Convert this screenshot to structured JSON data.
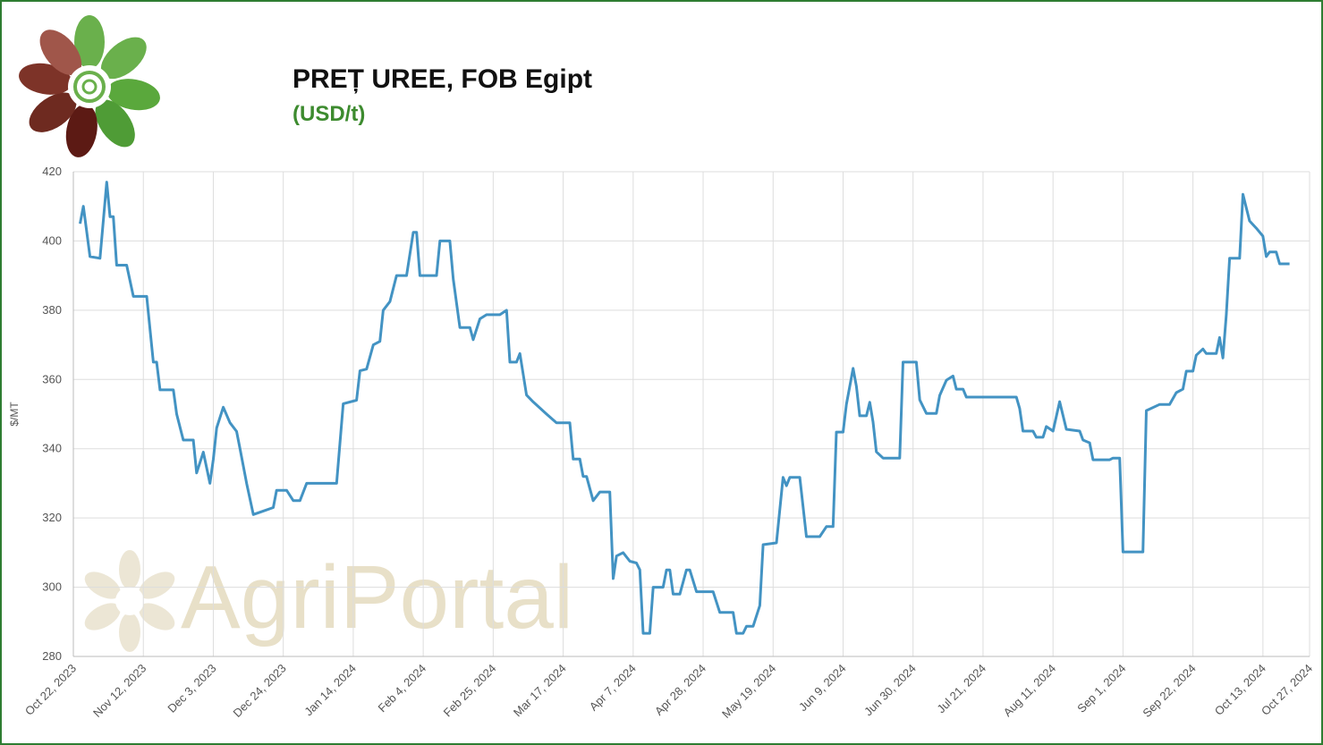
{
  "chart_data": {
    "type": "line",
    "title": "PREȚ UREE, FOB Egipt",
    "subtitle": "(USD/t)",
    "watermark": "AgriPortal",
    "y_label": "$/MT",
    "grid": true,
    "xlim": [
      "2023-10-22",
      "2024-10-27"
    ],
    "xticks": [
      {
        "value": "2023-10-22",
        "label": "Oct 22, 2023"
      },
      {
        "value": "2023-11-12",
        "label": "Nov 12, 2023"
      },
      {
        "value": "2023-12-03",
        "label": "Dec 3, 2023"
      },
      {
        "value": "2023-12-24",
        "label": "Dec 24, 2023"
      },
      {
        "value": "2024-01-14",
        "label": "Jan 14, 2024"
      },
      {
        "value": "2024-02-04",
        "label": "Feb 4, 2024"
      },
      {
        "value": "2024-02-25",
        "label": "Feb 25, 2024"
      },
      {
        "value": "2024-03-17",
        "label": "Mar 17, 2024"
      },
      {
        "value": "2024-04-07",
        "label": "Apr 7, 2024"
      },
      {
        "value": "2024-04-28",
        "label": "Apr 28, 2024"
      },
      {
        "value": "2024-05-19",
        "label": "May 19, 2024"
      },
      {
        "value": "2024-06-09",
        "label": "Jun 9, 2024"
      },
      {
        "value": "2024-06-30",
        "label": "Jun 30, 2024"
      },
      {
        "value": "2024-07-21",
        "label": "Jul 21, 2024"
      },
      {
        "value": "2024-08-11",
        "label": "Aug 11, 2024"
      },
      {
        "value": "2024-09-01",
        "label": "Sep 1, 2024"
      },
      {
        "value": "2024-09-22",
        "label": "Sep 22, 2024"
      },
      {
        "value": "2024-10-13",
        "label": "Oct 13, 2024"
      },
      {
        "value": "2024-10-27",
        "label": "Oct 27, 2024"
      }
    ],
    "ylim": [
      280,
      420
    ],
    "yticks": [
      280,
      300,
      320,
      340,
      360,
      380,
      400,
      420
    ],
    "x": [
      "2023-10-24",
      "2023-10-25",
      "2023-10-27",
      "2023-10-30",
      "2023-11-01",
      "2023-11-02",
      "2023-11-03",
      "2023-11-04",
      "2023-11-07",
      "2023-11-09",
      "2023-11-13",
      "2023-11-15",
      "2023-11-16",
      "2023-11-17",
      "2023-11-21",
      "2023-11-22",
      "2023-11-24",
      "2023-11-27",
      "2023-11-28",
      "2023-11-30",
      "2023-12-02",
      "2023-12-03",
      "2023-12-04",
      "2023-12-06",
      "2023-12-08",
      "2023-12-10",
      "2023-12-11",
      "2023-12-13",
      "2023-12-15",
      "2023-12-18",
      "2023-12-21",
      "2023-12-22",
      "2023-12-25",
      "2023-12-27",
      "2023-12-29",
      "2023-12-31",
      "2024-01-09",
      "2024-01-11",
      "2024-01-15",
      "2024-01-16",
      "2024-01-18",
      "2024-01-20",
      "2024-01-22",
      "2024-01-23",
      "2024-01-25",
      "2024-01-27",
      "2024-01-30",
      "2024-02-01",
      "2024-02-02",
      "2024-02-03",
      "2024-02-08",
      "2024-02-09",
      "2024-02-12",
      "2024-02-13",
      "2024-02-15",
      "2024-02-18",
      "2024-02-19",
      "2024-02-21",
      "2024-02-23",
      "2024-02-27",
      "2024-02-29",
      "2024-03-01",
      "2024-03-03",
      "2024-03-04",
      "2024-03-06",
      "2024-03-08",
      "2024-03-12",
      "2024-03-15",
      "2024-03-19",
      "2024-03-20",
      "2024-03-22",
      "2024-03-23",
      "2024-03-24",
      "2024-03-26",
      "2024-03-28",
      "2024-03-31",
      "2024-04-01",
      "2024-04-02",
      "2024-04-04",
      "2024-04-06",
      "2024-04-08",
      "2024-04-09",
      "2024-04-10",
      "2024-04-12",
      "2024-04-13",
      "2024-04-16",
      "2024-04-17",
      "2024-04-18",
      "2024-04-19",
      "2024-04-21",
      "2024-04-23",
      "2024-04-24",
      "2024-04-26",
      "2024-05-01",
      "2024-05-03",
      "2024-05-07",
      "2024-05-08",
      "2024-05-10",
      "2024-05-11",
      "2024-05-13",
      "2024-05-15",
      "2024-05-16",
      "2024-05-20",
      "2024-05-22",
      "2024-05-23",
      "2024-05-24",
      "2024-05-27",
      "2024-05-29",
      "2024-06-02",
      "2024-06-04",
      "2024-06-06",
      "2024-06-07",
      "2024-06-09",
      "2024-06-10",
      "2024-06-12",
      "2024-06-13",
      "2024-06-14",
      "2024-06-16",
      "2024-06-17",
      "2024-06-18",
      "2024-06-19",
      "2024-06-21",
      "2024-06-26",
      "2024-06-27",
      "2024-07-01",
      "2024-07-02",
      "2024-07-04",
      "2024-07-07",
      "2024-07-08",
      "2024-07-10",
      "2024-07-12",
      "2024-07-13",
      "2024-07-15",
      "2024-07-16",
      "2024-07-31",
      "2024-08-01",
      "2024-08-02",
      "2024-08-05",
      "2024-08-06",
      "2024-08-08",
      "2024-08-09",
      "2024-08-11",
      "2024-08-13",
      "2024-08-15",
      "2024-08-19",
      "2024-08-20",
      "2024-08-22",
      "2024-08-23",
      "2024-08-28",
      "2024-08-29",
      "2024-08-31",
      "2024-09-01",
      "2024-09-07",
      "2024-09-08",
      "2024-09-12",
      "2024-09-15",
      "2024-09-17",
      "2024-09-19",
      "2024-09-20",
      "2024-09-22",
      "2024-09-23",
      "2024-09-25",
      "2024-09-26",
      "2024-09-29",
      "2024-09-30",
      "2024-10-01",
      "2024-10-02",
      "2024-10-03",
      "2024-10-06",
      "2024-10-07",
      "2024-10-09",
      "2024-10-11",
      "2024-10-13",
      "2024-10-14",
      "2024-10-15",
      "2024-10-17",
      "2024-10-18",
      "2024-10-21"
    ],
    "series": [
      {
        "name": "Uree FOB Egipt",
        "color": "#4393c3",
        "values": [
          405,
          410,
          395.5,
          395,
          417,
          407,
          407,
          393,
          393,
          384,
          384,
          365,
          365,
          357,
          357,
          350,
          342.5,
          342.5,
          333,
          339,
          330,
          337,
          346,
          352,
          347.5,
          345,
          340,
          330,
          321,
          322,
          323,
          328,
          328,
          325,
          325,
          330,
          330,
          353,
          354,
          362.5,
          363,
          370,
          371,
          380,
          382.5,
          390,
          390,
          402.5,
          402.5,
          390,
          390,
          400,
          400,
          389,
          375,
          375,
          371.5,
          377.5,
          378.7,
          378.7,
          380,
          365,
          365,
          367.5,
          355.5,
          353.5,
          350,
          347.5,
          347.5,
          337,
          337,
          332,
          332,
          325,
          327.5,
          327.5,
          302.5,
          309,
          310,
          307.5,
          307,
          305,
          286.7,
          286.7,
          300,
          300,
          305,
          305,
          298,
          298,
          305,
          305,
          298.7,
          298.7,
          292.7,
          292.7,
          286.7,
          286.7,
          288.7,
          288.7,
          294.7,
          312.3,
          312.8,
          331.7,
          329.3,
          331.7,
          331.7,
          314.6,
          314.6,
          317.5,
          317.5,
          344.8,
          344.8,
          352.8,
          363.2,
          358,
          349.5,
          349.5,
          353.4,
          347.7,
          339.1,
          337.3,
          337.3,
          365,
          365,
          354.1,
          350.2,
          350.2,
          355.4,
          359.8,
          361,
          357.2,
          357.2,
          354.9,
          354.9,
          351.6,
          345.1,
          345.1,
          343.3,
          343.3,
          346.4,
          345.1,
          353.6,
          345.6,
          345.1,
          342.5,
          341.7,
          336.8,
          336.8,
          337.3,
          337.3,
          310.2,
          310.2,
          351,
          352.8,
          352.8,
          356.2,
          357.2,
          362.4,
          362.4,
          367,
          368.8,
          367.5,
          367.5,
          372.1,
          366.2,
          378.7,
          395,
          395,
          413.5,
          405.8,
          403.7,
          401.4,
          395.5,
          396.8,
          396.8,
          393.4,
          393.4
        ]
      }
    ]
  }
}
